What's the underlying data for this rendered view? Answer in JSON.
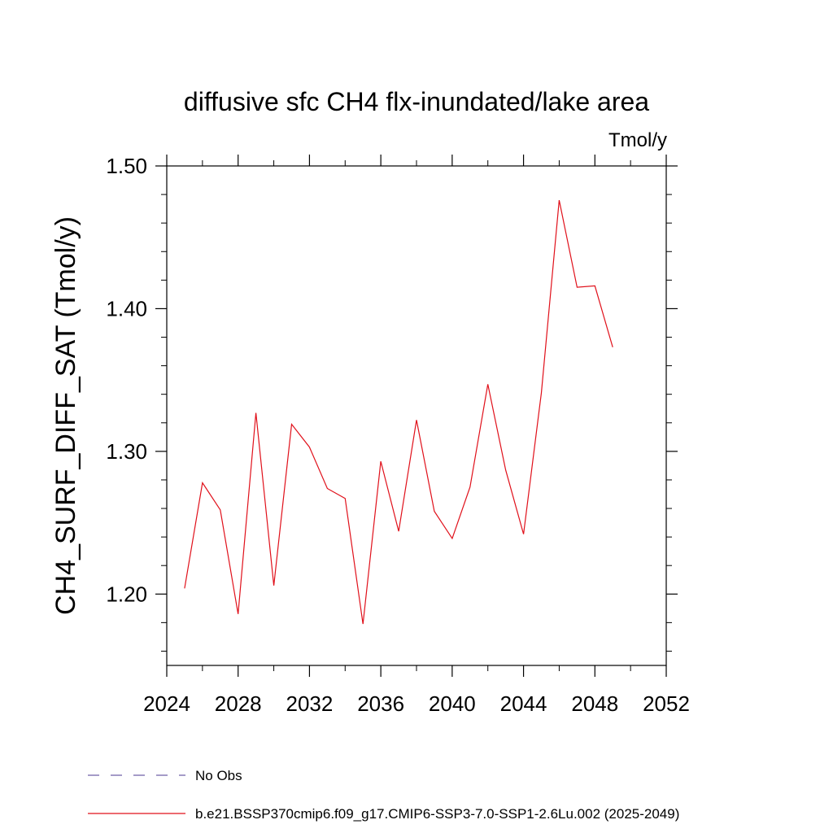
{
  "chart_data": {
    "type": "line",
    "title": "diffusive sfc CH4 flx-inundated/lake area",
    "units": "Tmol/y",
    "ylabel": "CH4_SURF_DIFF_SAT  (Tmol/y)",
    "xlabel": "",
    "xlim": [
      2024,
      2052
    ],
    "ylim": [
      1.15,
      1.5
    ],
    "x_ticks": [
      2024,
      2028,
      2032,
      2036,
      2040,
      2044,
      2048,
      2052
    ],
    "x_tick_labels": [
      "2024",
      "2028",
      "2032",
      "2036",
      "2040",
      "2044",
      "2048",
      "2052"
    ],
    "y_ticks": [
      1.2,
      1.3,
      1.4,
      1.5
    ],
    "y_tick_labels": [
      "1.20",
      "1.30",
      "1.40",
      "1.50"
    ],
    "grid": false,
    "legend_position": "bottom",
    "series": [
      {
        "name": "No Obs",
        "color": "#6f5fa8",
        "dashed": true,
        "x": [],
        "y": []
      },
      {
        "name": "b.e21.BSSP370cmip6.f09_g17.CMIP6-SSP3-7.0-SSP1-2.6Lu.002 (2025-2049)",
        "color": "#e0101a",
        "dashed": false,
        "x": [
          2025,
          2026,
          2027,
          2028,
          2029,
          2030,
          2031,
          2032,
          2033,
          2034,
          2035,
          2036,
          2037,
          2038,
          2039,
          2040,
          2041,
          2042,
          2043,
          2044,
          2045,
          2046,
          2047,
          2048,
          2049
        ],
        "y": [
          1.204,
          1.278,
          1.259,
          1.186,
          1.327,
          1.206,
          1.319,
          1.303,
          1.274,
          1.267,
          1.179,
          1.293,
          1.244,
          1.322,
          1.258,
          1.239,
          1.275,
          1.347,
          1.287,
          1.242,
          1.341,
          1.476,
          1.415,
          1.416,
          1.373
        ]
      }
    ]
  }
}
